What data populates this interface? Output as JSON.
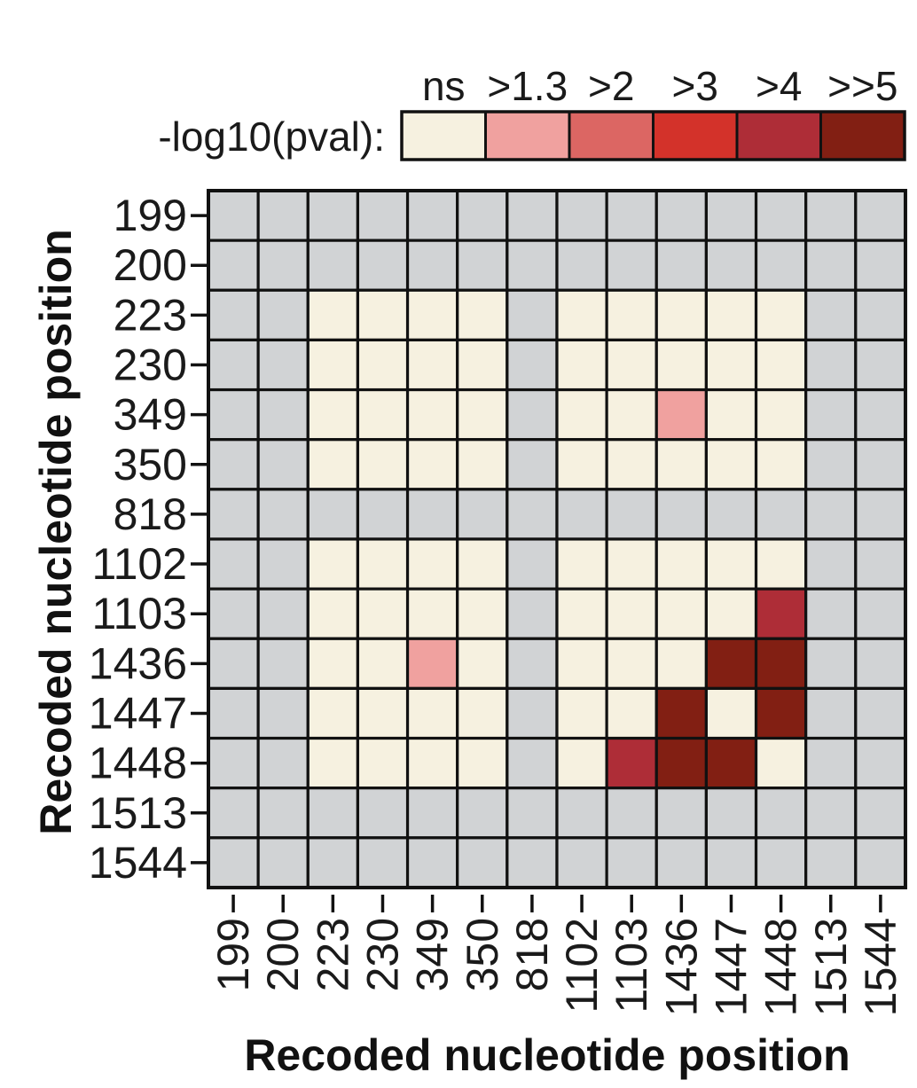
{
  "chart_data": {
    "type": "heatmap",
    "xlabel": "Recoded nucleotide position",
    "ylabel": "Recoded nucleotide position",
    "x_categories": [
      "199",
      "200",
      "223",
      "230",
      "349",
      "350",
      "818",
      "1102",
      "1103",
      "1436",
      "1447",
      "1448",
      "1513",
      "1544"
    ],
    "y_categories": [
      "199",
      "200",
      "223",
      "230",
      "349",
      "350",
      "818",
      "1102",
      "1103",
      "1436",
      "1447",
      "1448",
      "1513",
      "1544"
    ],
    "missing_color": "#d1d3d5",
    "legend": {
      "title": "-log10(pval):",
      "levels": [
        {
          "label": "ns",
          "color": "#f6f1e0"
        },
        {
          "label": ">1.3",
          "color": "#f0a19f"
        },
        {
          "label": ">2",
          "color": "#dc6663"
        },
        {
          "label": ">3",
          "color": "#d3322a"
        },
        {
          "label": ">4",
          "color": "#ae2d37"
        },
        {
          "label": ">>5",
          "color": "#821f13"
        }
      ]
    },
    "level_matrix_note": "row = y category, column = x category; null = not tested (grey), 0 = ns, 1 = >1.3, 2 = >2, 3 = >3, 4 = >4, 5 = >>5",
    "level_matrix": [
      [
        null,
        null,
        null,
        null,
        null,
        null,
        null,
        null,
        null,
        null,
        null,
        null,
        null,
        null
      ],
      [
        null,
        null,
        null,
        null,
        null,
        null,
        null,
        null,
        null,
        null,
        null,
        null,
        null,
        null
      ],
      [
        null,
        null,
        0,
        0,
        0,
        0,
        null,
        0,
        0,
        0,
        0,
        0,
        null,
        null
      ],
      [
        null,
        null,
        0,
        0,
        0,
        0,
        null,
        0,
        0,
        0,
        0,
        0,
        null,
        null
      ],
      [
        null,
        null,
        0,
        0,
        0,
        0,
        null,
        0,
        0,
        1,
        0,
        0,
        null,
        null
      ],
      [
        null,
        null,
        0,
        0,
        0,
        0,
        null,
        0,
        0,
        0,
        0,
        0,
        null,
        null
      ],
      [
        null,
        null,
        null,
        null,
        null,
        null,
        null,
        null,
        null,
        null,
        null,
        null,
        null,
        null
      ],
      [
        null,
        null,
        0,
        0,
        0,
        0,
        null,
        0,
        0,
        0,
        0,
        0,
        null,
        null
      ],
      [
        null,
        null,
        0,
        0,
        0,
        0,
        null,
        0,
        0,
        0,
        0,
        4,
        null,
        null
      ],
      [
        null,
        null,
        0,
        0,
        1,
        0,
        null,
        0,
        0,
        0,
        5,
        5,
        null,
        null
      ],
      [
        null,
        null,
        0,
        0,
        0,
        0,
        null,
        0,
        0,
        5,
        0,
        5,
        null,
        null
      ],
      [
        null,
        null,
        0,
        0,
        0,
        0,
        null,
        0,
        4,
        5,
        5,
        0,
        null,
        null
      ],
      [
        null,
        null,
        null,
        null,
        null,
        null,
        null,
        null,
        null,
        null,
        null,
        null,
        null,
        null
      ],
      [
        null,
        null,
        null,
        null,
        null,
        null,
        null,
        null,
        null,
        null,
        null,
        null,
        null,
        null
      ]
    ]
  }
}
